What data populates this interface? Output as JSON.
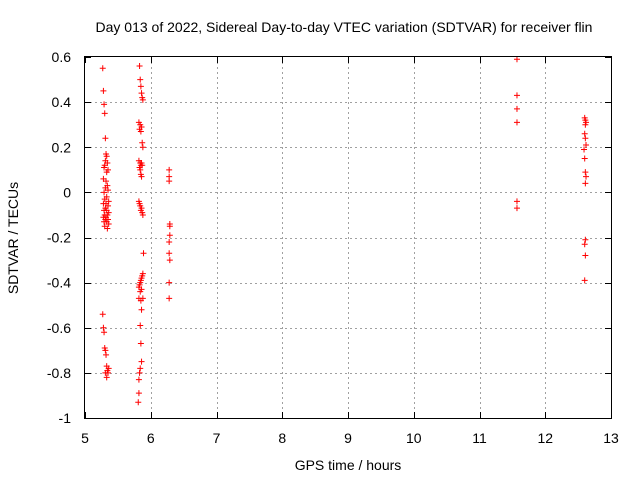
{
  "chart_data": {
    "type": "scatter",
    "title": "Day 013 of 2022, Sidereal Day-to-day VTEC variation (SDTVAR) for receiver flin",
    "xlabel": "GPS time / hours",
    "ylabel": "SDTVAR / TECUs",
    "xlim": [
      5,
      13
    ],
    "ylim": [
      -1,
      0.6
    ],
    "xticks": [
      5,
      6,
      7,
      8,
      9,
      10,
      11,
      12,
      13
    ],
    "yticks": [
      -1,
      -0.8,
      -0.6,
      -0.4,
      -0.2,
      0,
      0.2,
      0.4,
      0.6
    ],
    "xtick_labels": [
      "5",
      "6",
      "7",
      "8",
      "9",
      "10",
      "11",
      "12",
      "13"
    ],
    "ytick_labels": [
      "-1",
      "-0.8",
      "-0.6",
      "-0.4",
      "-0.2",
      "0",
      "0.2",
      "0.4",
      "0.6"
    ],
    "grid": true,
    "marker": "+",
    "series": [
      {
        "name": "SDTVAR",
        "color": "#ff0000",
        "points": [
          [
            5.27,
            0.55
          ],
          [
            5.28,
            0.45
          ],
          [
            5.29,
            0.39
          ],
          [
            5.3,
            0.35
          ],
          [
            5.31,
            0.24
          ],
          [
            5.32,
            0.17
          ],
          [
            5.33,
            0.16
          ],
          [
            5.31,
            0.14
          ],
          [
            5.34,
            0.13
          ],
          [
            5.3,
            0.12
          ],
          [
            5.29,
            0.11
          ],
          [
            5.35,
            0.1
          ],
          [
            5.33,
            0.09
          ],
          [
            5.28,
            0.06
          ],
          [
            5.32,
            0.05
          ],
          [
            5.34,
            0.03
          ],
          [
            5.31,
            0.02
          ],
          [
            5.35,
            0.01
          ],
          [
            5.29,
            0.0
          ],
          [
            5.33,
            -0.02
          ],
          [
            5.3,
            -0.03
          ],
          [
            5.36,
            -0.04
          ],
          [
            5.28,
            -0.05
          ],
          [
            5.32,
            -0.05
          ],
          [
            5.35,
            -0.06
          ],
          [
            5.31,
            -0.07
          ],
          [
            5.33,
            -0.08
          ],
          [
            5.29,
            -0.08
          ],
          [
            5.36,
            -0.09
          ],
          [
            5.3,
            -0.1
          ],
          [
            5.34,
            -0.1
          ],
          [
            5.28,
            -0.11
          ],
          [
            5.32,
            -0.11
          ],
          [
            5.35,
            -0.12
          ],
          [
            5.31,
            -0.12
          ],
          [
            5.33,
            -0.13
          ],
          [
            5.29,
            -0.13
          ],
          [
            5.36,
            -0.14
          ],
          [
            5.3,
            -0.15
          ],
          [
            5.34,
            -0.16
          ],
          [
            5.27,
            -0.54
          ],
          [
            5.28,
            -0.6
          ],
          [
            5.29,
            -0.62
          ],
          [
            5.3,
            -0.69
          ],
          [
            5.31,
            -0.7
          ],
          [
            5.32,
            -0.72
          ],
          [
            5.33,
            -0.77
          ],
          [
            5.34,
            -0.79
          ],
          [
            5.35,
            -0.8
          ],
          [
            5.33,
            -0.82
          ],
          [
            5.31,
            -0.8
          ],
          [
            5.36,
            -0.78
          ],
          [
            5.83,
            0.56
          ],
          [
            5.84,
            0.5
          ],
          [
            5.85,
            0.47
          ],
          [
            5.86,
            0.44
          ],
          [
            5.87,
            0.42
          ],
          [
            5.88,
            0.41
          ],
          [
            5.82,
            0.31
          ],
          [
            5.84,
            0.3
          ],
          [
            5.86,
            0.29
          ],
          [
            5.83,
            0.28
          ],
          [
            5.85,
            0.27
          ],
          [
            5.87,
            0.22
          ],
          [
            5.88,
            0.2
          ],
          [
            5.82,
            0.14
          ],
          [
            5.84,
            0.13
          ],
          [
            5.86,
            0.13
          ],
          [
            5.85,
            0.12
          ],
          [
            5.87,
            0.12
          ],
          [
            5.83,
            0.11
          ],
          [
            5.84,
            0.1
          ],
          [
            5.85,
            0.08
          ],
          [
            5.86,
            0.07
          ],
          [
            5.82,
            -0.04
          ],
          [
            5.83,
            -0.05
          ],
          [
            5.84,
            -0.06
          ],
          [
            5.86,
            -0.07
          ],
          [
            5.85,
            -0.08
          ],
          [
            5.87,
            -0.09
          ],
          [
            5.88,
            -0.1
          ],
          [
            5.89,
            -0.27
          ],
          [
            5.88,
            -0.36
          ],
          [
            5.87,
            -0.37
          ],
          [
            5.86,
            -0.38
          ],
          [
            5.85,
            -0.39
          ],
          [
            5.84,
            -0.4
          ],
          [
            5.83,
            -0.41
          ],
          [
            5.82,
            -0.42
          ],
          [
            5.86,
            -0.43
          ],
          [
            5.84,
            -0.44
          ],
          [
            5.88,
            -0.47
          ],
          [
            5.82,
            -0.47
          ],
          [
            5.85,
            -0.48
          ],
          [
            5.86,
            -0.52
          ],
          [
            5.84,
            -0.59
          ],
          [
            5.85,
            -0.67
          ],
          [
            5.86,
            -0.75
          ],
          [
            5.84,
            -0.78
          ],
          [
            5.83,
            -0.8
          ],
          [
            5.82,
            -0.83
          ],
          [
            5.82,
            -0.89
          ],
          [
            5.81,
            -0.93
          ],
          [
            6.28,
            0.1
          ],
          [
            6.28,
            0.07
          ],
          [
            6.28,
            0.05
          ],
          [
            6.29,
            -0.14
          ],
          [
            6.29,
            -0.15
          ],
          [
            6.29,
            -0.19
          ],
          [
            6.28,
            -0.22
          ],
          [
            6.28,
            -0.27
          ],
          [
            6.29,
            -0.3
          ],
          [
            6.28,
            -0.4
          ],
          [
            6.28,
            -0.47
          ],
          [
            11.57,
            0.59
          ],
          [
            11.57,
            0.43
          ],
          [
            11.57,
            0.37
          ],
          [
            11.57,
            0.31
          ],
          [
            11.57,
            -0.04
          ],
          [
            11.57,
            -0.07
          ],
          [
            12.6,
            0.33
          ],
          [
            12.61,
            0.32
          ],
          [
            12.62,
            0.31
          ],
          [
            12.61,
            0.3
          ],
          [
            12.6,
            0.26
          ],
          [
            12.61,
            0.24
          ],
          [
            12.62,
            0.21
          ],
          [
            12.59,
            0.19
          ],
          [
            12.6,
            0.15
          ],
          [
            12.61,
            0.09
          ],
          [
            12.62,
            0.07
          ],
          [
            12.61,
            0.04
          ],
          [
            12.61,
            -0.21
          ],
          [
            12.6,
            -0.23
          ],
          [
            12.61,
            -0.28
          ],
          [
            12.6,
            -0.39
          ]
        ]
      }
    ]
  }
}
